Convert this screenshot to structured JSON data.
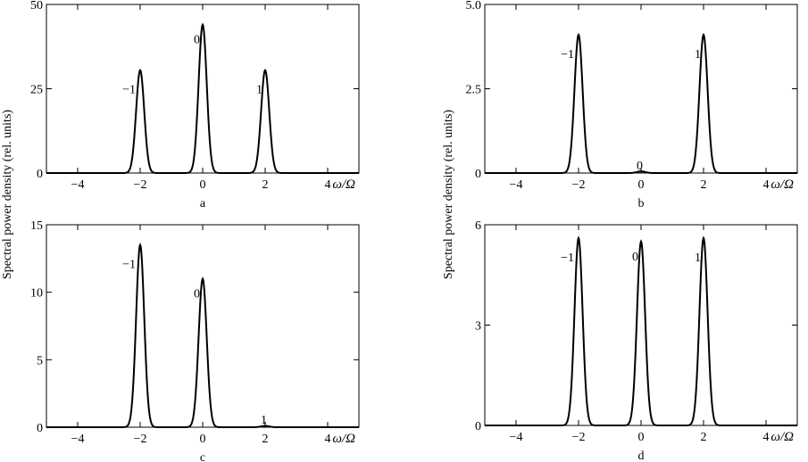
{
  "ylabel": "Spectral power density (rel. units)",
  "chart_data": [
    {
      "type": "line",
      "panel_label": "a",
      "xlabel": "ω/Ω",
      "xlim": [
        -5,
        5
      ],
      "ylim": [
        0,
        50
      ],
      "xticks": [
        -4,
        -2,
        0,
        2,
        4
      ],
      "xtick_labels": [
        "−4",
        "−2",
        "0",
        "2",
        "4"
      ],
      "yticks": [
        0,
        25,
        50
      ],
      "ytick_labels": [
        "0",
        "25",
        "50"
      ],
      "peaks": [
        {
          "center": -2,
          "height": 30.5,
          "label": "−1"
        },
        {
          "center": 0,
          "height": 44,
          "label": "0"
        },
        {
          "center": 2,
          "height": 30.5,
          "label": "1"
        }
      ],
      "grid": false
    },
    {
      "type": "line",
      "panel_label": "b",
      "xlabel": "ω/Ω",
      "xlim": [
        -5,
        5
      ],
      "ylim": [
        0,
        5.0
      ],
      "xticks": [
        -4,
        -2,
        0,
        2,
        4
      ],
      "xtick_labels": [
        "−4",
        "−2",
        "0",
        "2",
        "4"
      ],
      "yticks": [
        0,
        2.5,
        5.0
      ],
      "ytick_labels": [
        "0",
        "2.5",
        "5.0"
      ],
      "peaks": [
        {
          "center": -2,
          "height": 4.1,
          "label": "−1"
        },
        {
          "center": 0,
          "height": 0.05,
          "label": "0"
        },
        {
          "center": 2,
          "height": 4.1,
          "label": "1"
        }
      ],
      "grid": false
    },
    {
      "type": "line",
      "panel_label": "c",
      "xlabel": "ω/Ω",
      "xlim": [
        -5,
        5
      ],
      "ylim": [
        0,
        15
      ],
      "xticks": [
        -4,
        -2,
        0,
        2,
        4
      ],
      "xtick_labels": [
        "−4",
        "−2",
        "0",
        "2",
        "4"
      ],
      "yticks": [
        0,
        5,
        10,
        15
      ],
      "ytick_labels": [
        "0",
        "5",
        "10",
        "15"
      ],
      "peaks": [
        {
          "center": -2,
          "height": 13.5,
          "label": "−1"
        },
        {
          "center": 0,
          "height": 11,
          "label": "0"
        },
        {
          "center": 2,
          "height": 0.1,
          "label": "1"
        }
      ],
      "grid": false
    },
    {
      "type": "line",
      "panel_label": "d",
      "xlabel": "ω/Ω",
      "xlim": [
        -5,
        5
      ],
      "ylim": [
        0,
        6
      ],
      "xticks": [
        -4,
        -2,
        0,
        2,
        4
      ],
      "xtick_labels": [
        "−4",
        "−2",
        "0",
        "2",
        "4"
      ],
      "yticks": [
        0,
        3,
        6
      ],
      "ytick_labels": [
        "0",
        "3",
        "6"
      ],
      "peaks": [
        {
          "center": -2,
          "height": 5.6,
          "label": "−1"
        },
        {
          "center": 0,
          "height": 5.5,
          "label": "0"
        },
        {
          "center": 2,
          "height": 5.6,
          "label": "1"
        }
      ],
      "grid": false
    }
  ]
}
